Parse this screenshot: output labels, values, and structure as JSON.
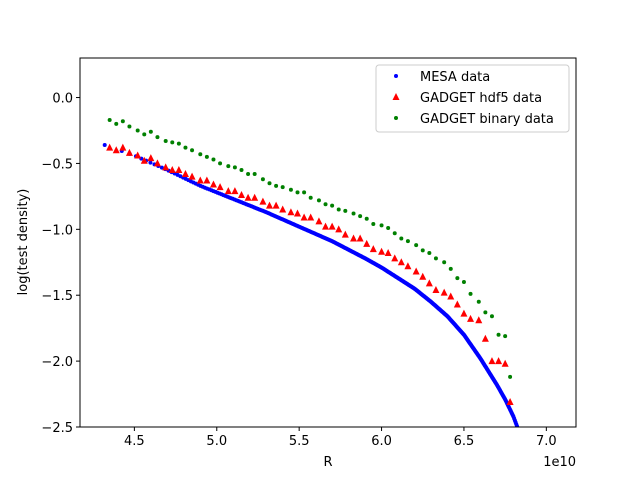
{
  "chart_data": {
    "type": "scatter",
    "title": "",
    "xlabel": "R",
    "ylabel": "log(test density)",
    "x_offset_label": "1e10",
    "xlim": [
      4.17,
      7.18
    ],
    "ylim": [
      -2.5,
      0.3
    ],
    "x_ticks": [
      4.5,
      5.0,
      5.5,
      6.0,
      6.5,
      7.0
    ],
    "x_tick_labels": [
      "4.5",
      "5.0",
      "5.5",
      "6.0",
      "6.5",
      "7.0"
    ],
    "y_ticks": [
      0.0,
      -0.5,
      -1.0,
      -1.5,
      -2.0,
      -2.5
    ],
    "y_tick_labels": [
      "0.0",
      "−0.5",
      "−1.0",
      "−1.5",
      "−2.0",
      "−2.5"
    ],
    "grid": false,
    "legend_position": "top-right",
    "x_unit_scale": 10000000000.0,
    "series": [
      {
        "name": "MESA data",
        "marker": "circle",
        "color": "#0000ff",
        "style": "dense",
        "x": [
          4.32,
          4.5,
          4.7,
          4.9,
          5.1,
          5.3,
          5.5,
          5.7,
          5.9,
          6.0,
          6.1,
          6.2,
          6.3,
          6.4,
          6.5,
          6.6,
          6.65,
          6.7,
          6.75,
          6.8,
          6.83
        ],
        "y": [
          -0.36,
          -0.44,
          -0.55,
          -0.67,
          -0.77,
          -0.87,
          -0.98,
          -1.09,
          -1.22,
          -1.29,
          -1.37,
          -1.45,
          -1.55,
          -1.66,
          -1.8,
          -1.98,
          -2.08,
          -2.18,
          -2.29,
          -2.42,
          -2.52
        ]
      },
      {
        "name": "GADGET hdf5 data",
        "marker": "triangle",
        "color": "#ff0000",
        "x": [
          4.35,
          4.39,
          4.43,
          4.47,
          4.52,
          4.56,
          4.6,
          4.64,
          4.69,
          4.73,
          4.77,
          4.81,
          4.85,
          4.9,
          4.94,
          4.98,
          5.02,
          5.07,
          5.11,
          5.15,
          5.19,
          5.23,
          5.28,
          5.32,
          5.36,
          5.4,
          5.45,
          5.49,
          5.53,
          5.57,
          5.62,
          5.66,
          5.7,
          5.74,
          5.78,
          5.83,
          5.87,
          5.91,
          5.95,
          6.0,
          6.04,
          6.08,
          6.12,
          6.16,
          6.21,
          6.25,
          6.29,
          6.33,
          6.38,
          6.42,
          6.46,
          6.5,
          6.54,
          6.59,
          6.63,
          6.67,
          6.71,
          6.75,
          6.78
        ],
        "y": [
          -0.38,
          -0.4,
          -0.38,
          -0.42,
          -0.44,
          -0.48,
          -0.46,
          -0.5,
          -0.53,
          -0.55,
          -0.55,
          -0.58,
          -0.6,
          -0.63,
          -0.63,
          -0.66,
          -0.68,
          -0.71,
          -0.71,
          -0.74,
          -0.76,
          -0.76,
          -0.79,
          -0.82,
          -0.82,
          -0.85,
          -0.87,
          -0.88,
          -0.91,
          -0.91,
          -0.94,
          -0.98,
          -0.98,
          -1.0,
          -1.04,
          -1.07,
          -1.07,
          -1.11,
          -1.15,
          -1.17,
          -1.18,
          -1.22,
          -1.25,
          -1.28,
          -1.32,
          -1.36,
          -1.41,
          -1.46,
          -1.48,
          -1.51,
          -1.57,
          -1.64,
          -1.68,
          -1.69,
          -1.83,
          -2.0,
          -2.0,
          -2.02,
          -2.31
        ]
      },
      {
        "name": "GADGET binary data",
        "marker": "circle",
        "color": "#008000",
        "x": [
          4.35,
          4.39,
          4.43,
          4.47,
          4.52,
          4.56,
          4.6,
          4.64,
          4.69,
          4.73,
          4.77,
          4.81,
          4.85,
          4.9,
          4.94,
          4.98,
          5.02,
          5.07,
          5.11,
          5.15,
          5.19,
          5.23,
          5.28,
          5.32,
          5.36,
          5.4,
          5.45,
          5.49,
          5.53,
          5.57,
          5.62,
          5.66,
          5.7,
          5.74,
          5.78,
          5.83,
          5.87,
          5.91,
          5.95,
          6.0,
          6.04,
          6.08,
          6.12,
          6.16,
          6.21,
          6.25,
          6.29,
          6.33,
          6.38,
          6.42,
          6.46,
          6.5,
          6.54,
          6.59,
          6.63,
          6.67,
          6.71,
          6.75,
          6.78
        ],
        "y": [
          -0.17,
          -0.2,
          -0.18,
          -0.22,
          -0.25,
          -0.28,
          -0.26,
          -0.3,
          -0.33,
          -0.34,
          -0.35,
          -0.38,
          -0.4,
          -0.43,
          -0.45,
          -0.47,
          -0.5,
          -0.52,
          -0.53,
          -0.55,
          -0.58,
          -0.58,
          -0.62,
          -0.65,
          -0.67,
          -0.68,
          -0.7,
          -0.72,
          -0.72,
          -0.76,
          -0.78,
          -0.81,
          -0.82,
          -0.85,
          -0.86,
          -0.88,
          -0.9,
          -0.92,
          -0.96,
          -0.97,
          -0.99,
          -1.03,
          -1.07,
          -1.09,
          -1.12,
          -1.16,
          -1.18,
          -1.22,
          -1.25,
          -1.3,
          -1.37,
          -1.4,
          -1.49,
          -1.55,
          -1.63,
          -1.66,
          -1.8,
          -1.81,
          -2.12
        ]
      }
    ]
  }
}
